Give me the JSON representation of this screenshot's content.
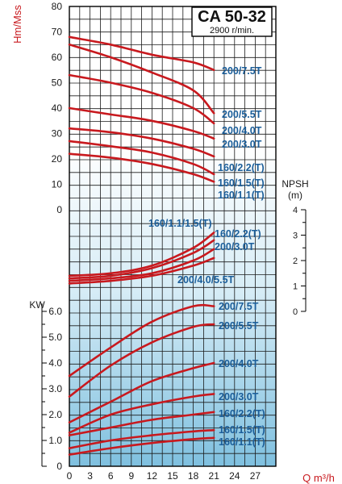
{
  "chart_data": {
    "type": "line",
    "title": "CA 50-32",
    "subtitle": "2900 r/min.",
    "x": {
      "label": "Q m³/h",
      "ticks": [
        "0",
        "3",
        "6",
        "9",
        "12",
        "15",
        "18",
        "21",
        "24",
        "27"
      ],
      "lim": [
        0,
        30
      ]
    },
    "head_panel": {
      "ylabel": "Hm/Mss",
      "ticks": [
        "80",
        "70",
        "60",
        "50",
        "40",
        "30",
        "20",
        "10",
        "0"
      ],
      "ylim": [
        0,
        80
      ],
      "series": [
        {
          "name": "200/7.5T",
          "x": [
            0,
            6,
            12,
            18,
            21
          ],
          "y": [
            68,
            65,
            61,
            58,
            55
          ]
        },
        {
          "name": "200/5.5T",
          "x": [
            0,
            6,
            12,
            18,
            21
          ],
          "y": [
            65,
            60,
            54,
            47,
            38
          ]
        },
        {
          "name": "200/4.0T",
          "x": [
            0,
            6,
            12,
            18,
            21
          ],
          "y": [
            53,
            50,
            46,
            40,
            34
          ]
        },
        {
          "name": "200/3.0T",
          "x": [
            0,
            6,
            12,
            18,
            21
          ],
          "y": [
            40,
            37.5,
            35,
            31,
            28
          ]
        },
        {
          "name": "160/2.2(T)",
          "x": [
            0,
            6,
            12,
            18,
            21
          ],
          "y": [
            32,
            30.5,
            28,
            24,
            21
          ]
        },
        {
          "name": "160/1.5(T)",
          "x": [
            0,
            6,
            12,
            18,
            21
          ],
          "y": [
            27,
            25,
            22.5,
            18,
            14
          ]
        },
        {
          "name": "160/1.1(T)",
          "x": [
            0,
            6,
            12,
            18,
            21
          ],
          "y": [
            22,
            20.5,
            18,
            14,
            11
          ]
        }
      ]
    },
    "npsh_panel": {
      "ylabel": "NPSH (m)",
      "ticks": [
        "4",
        "3",
        "2",
        "1",
        "0"
      ],
      "ylim": [
        0,
        4
      ],
      "series": [
        {
          "name": "160/1.1/1.5(T)",
          "x": [
            0,
            6,
            12,
            18,
            21
          ],
          "y": [
            1.4,
            1.5,
            1.8,
            2.5,
            3.1
          ]
        },
        {
          "name": "160/2.2(T)",
          "x": [
            0,
            6,
            12,
            18,
            21
          ],
          "y": [
            1.3,
            1.4,
            1.7,
            2.3,
            2.8
          ]
        },
        {
          "name": "200/3.0T",
          "x": [
            0,
            6,
            12,
            18,
            21
          ],
          "y": [
            1.2,
            1.3,
            1.5,
            2.0,
            2.45
          ]
        },
        {
          "name": "200/4.0/5.5T",
          "x": [
            0,
            6,
            12,
            18,
            21
          ],
          "y": [
            1.1,
            1.2,
            1.4,
            1.8,
            2.1
          ]
        }
      ]
    },
    "power_panel": {
      "ylabel": "KW",
      "ticks": [
        "6.0",
        "5.0",
        "4.0",
        "3.0",
        "2.0",
        "1.0",
        "0"
      ],
      "ylim": [
        0,
        6.0
      ],
      "series": [
        {
          "name": "200/7.5T",
          "x": [
            0,
            6,
            12,
            18,
            21
          ],
          "y": [
            3.5,
            4.6,
            5.6,
            6.2,
            6.2
          ]
        },
        {
          "name": "200/5.5T",
          "x": [
            0,
            6,
            12,
            18,
            21
          ],
          "y": [
            2.7,
            3.9,
            4.8,
            5.4,
            5.5
          ]
        },
        {
          "name": "200/4.0T",
          "x": [
            0,
            6,
            12,
            18,
            21
          ],
          "y": [
            1.7,
            2.5,
            3.3,
            3.8,
            4.0
          ]
        },
        {
          "name": "200/3.0T",
          "x": [
            0,
            6,
            12,
            18,
            21
          ],
          "y": [
            1.3,
            2.0,
            2.4,
            2.7,
            2.8
          ]
        },
        {
          "name": "160/2.2(T)",
          "x": [
            0,
            6,
            12,
            18,
            21
          ],
          "y": [
            1.2,
            1.5,
            1.8,
            2.0,
            2.1
          ]
        },
        {
          "name": "160/1.5(T)",
          "x": [
            0,
            6,
            12,
            18,
            21
          ],
          "y": [
            0.7,
            1.0,
            1.2,
            1.35,
            1.4
          ]
        },
        {
          "name": "160/1.1(T)",
          "x": [
            0,
            6,
            12,
            18,
            21
          ],
          "y": [
            0.45,
            0.7,
            0.9,
            1.05,
            1.1
          ]
        }
      ]
    }
  }
}
